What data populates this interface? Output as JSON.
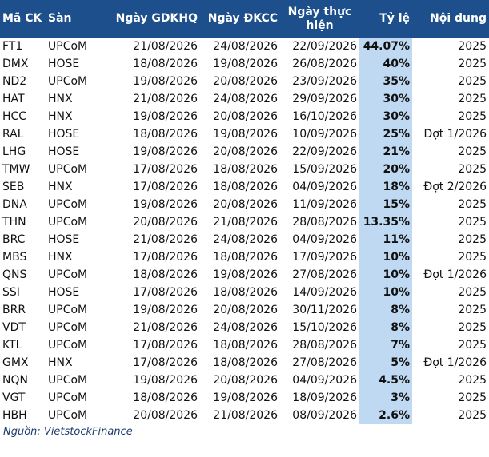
{
  "table": {
    "columns": [
      "Mã CK",
      "Sàn",
      "Ngày GDKHQ",
      "Ngày ĐKCC",
      "Ngày thực hiện",
      "Tỷ lệ",
      "Nội dung"
    ],
    "rows": [
      [
        "FT1",
        "UPCoM",
        "21/08/2026",
        "24/08/2026",
        "22/09/2026",
        "44.07%",
        "2025"
      ],
      [
        "DMX",
        "HOSE",
        "18/08/2026",
        "19/08/2026",
        "26/08/2026",
        "40%",
        "2025"
      ],
      [
        "ND2",
        "UPCoM",
        "19/08/2026",
        "20/08/2026",
        "23/09/2026",
        "35%",
        "2025"
      ],
      [
        "HAT",
        "HNX",
        "21/08/2026",
        "24/08/2026",
        "29/09/2026",
        "30%",
        "2025"
      ],
      [
        "HCC",
        "HNX",
        "19/08/2026",
        "20/08/2026",
        "16/10/2026",
        "30%",
        "2025"
      ],
      [
        "RAL",
        "HOSE",
        "18/08/2026",
        "19/08/2026",
        "10/09/2026",
        "25%",
        "Đợt 1/2026"
      ],
      [
        "LHG",
        "HOSE",
        "19/08/2026",
        "20/08/2026",
        "22/09/2026",
        "21%",
        "2025"
      ],
      [
        "TMW",
        "UPCoM",
        "17/08/2026",
        "18/08/2026",
        "15/09/2026",
        "20%",
        "2025"
      ],
      [
        "SEB",
        "HNX",
        "17/08/2026",
        "18/08/2026",
        "04/09/2026",
        "18%",
        "Đợt 2/2026"
      ],
      [
        "DNA",
        "UPCoM",
        "19/08/2026",
        "20/08/2026",
        "11/09/2026",
        "15%",
        "2025"
      ],
      [
        "THN",
        "UPCoM",
        "20/08/2026",
        "21/08/2026",
        "28/08/2026",
        "13.35%",
        "2025"
      ],
      [
        "BRC",
        "HOSE",
        "21/08/2026",
        "24/08/2026",
        "04/09/2026",
        "11%",
        "2025"
      ],
      [
        "MBS",
        "HNX",
        "17/08/2026",
        "18/08/2026",
        "17/09/2026",
        "10%",
        "2025"
      ],
      [
        "QNS",
        "UPCoM",
        "18/08/2026",
        "19/08/2026",
        "27/08/2026",
        "10%",
        "Đợt 1/2026"
      ],
      [
        "SSI",
        "HOSE",
        "17/08/2026",
        "18/08/2026",
        "14/09/2026",
        "10%",
        "2025"
      ],
      [
        "BRR",
        "UPCoM",
        "19/08/2026",
        "20/08/2026",
        "30/11/2026",
        "8%",
        "2025"
      ],
      [
        "VDT",
        "UPCoM",
        "21/08/2026",
        "24/08/2026",
        "15/10/2026",
        "8%",
        "2025"
      ],
      [
        "KTL",
        "UPCoM",
        "17/08/2026",
        "18/08/2026",
        "28/08/2026",
        "7%",
        "2025"
      ],
      [
        "GMX",
        "HNX",
        "17/08/2026",
        "18/08/2026",
        "27/08/2026",
        "5%",
        "Đợt 1/2026"
      ],
      [
        "NQN",
        "UPCoM",
        "19/08/2026",
        "20/08/2026",
        "04/09/2026",
        "4.5%",
        "2025"
      ],
      [
        "VGT",
        "UPCoM",
        "18/08/2026",
        "19/08/2026",
        "18/09/2026",
        "3%",
        "2025"
      ],
      [
        "HBH",
        "UPCoM",
        "20/08/2026",
        "21/08/2026",
        "08/09/2026",
        "2.6%",
        "2025"
      ]
    ]
  },
  "source": "Nguồn: VietstockFinance"
}
